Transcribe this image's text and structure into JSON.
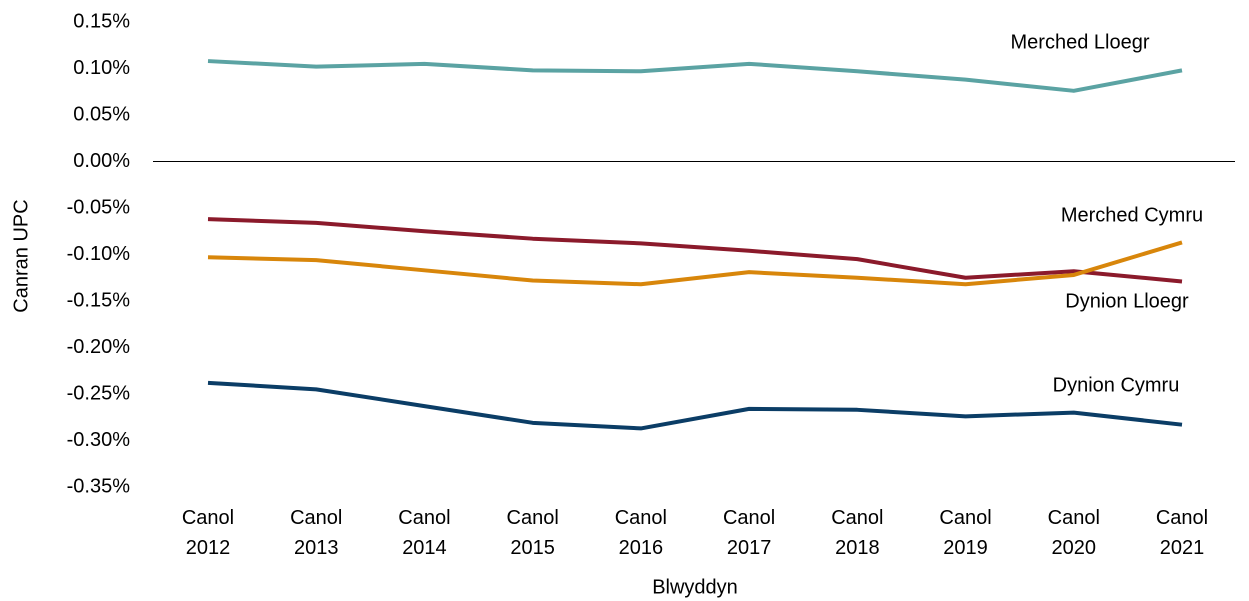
{
  "chart_data": {
    "type": "line",
    "x_label": "Blwyddyn",
    "y_label": "Canran UPC",
    "categories": [
      "Canol 2012",
      "Canol 2013",
      "Canol 2014",
      "Canol 2015",
      "Canol 2016",
      "Canol 2017",
      "Canol 2018",
      "Canol 2019",
      "Canol 2020",
      "Canol 2021"
    ],
    "series": [
      {
        "name": "Merched Lloegr",
        "color": "#5ba3a3",
        "values": [
          0.108,
          0.102,
          0.105,
          0.098,
          0.097,
          0.105,
          0.097,
          0.088,
          0.076,
          0.098
        ]
      },
      {
        "name": "Merched Cymru",
        "color": "#8b1a2b",
        "values": [
          -0.062,
          -0.066,
          -0.075,
          -0.083,
          -0.088,
          -0.096,
          -0.105,
          -0.125,
          -0.118,
          -0.129
        ]
      },
      {
        "name": "Dynion Lloegr",
        "color": "#d8860b",
        "values": [
          -0.103,
          -0.106,
          -0.117,
          -0.128,
          -0.132,
          -0.119,
          -0.125,
          -0.132,
          -0.122,
          -0.087
        ]
      },
      {
        "name": "Dynion Cymru",
        "color": "#0b3d66",
        "values": [
          -0.238,
          -0.245,
          -0.263,
          -0.281,
          -0.287,
          -0.266,
          -0.267,
          -0.274,
          -0.27,
          -0.283
        ]
      }
    ],
    "ylim": [
      -0.35,
      0.15
    ],
    "yticks": [
      {
        "value": 0.15,
        "label": "0.15%"
      },
      {
        "value": 0.1,
        "label": "0.10%"
      },
      {
        "value": 0.05,
        "label": "0.05%"
      },
      {
        "value": 0,
        "label": "0.00%"
      },
      {
        "value": -0.05,
        "label": "-0.05%"
      },
      {
        "value": -0.1,
        "label": "-0.10%"
      },
      {
        "value": -0.15,
        "label": "-0.15%"
      },
      {
        "value": -0.2,
        "label": "-0.20%"
      },
      {
        "value": -0.25,
        "label": "-0.25%"
      },
      {
        "value": -0.3,
        "label": "-0.30%"
      },
      {
        "value": -0.35,
        "label": "-0.35%"
      }
    ],
    "grid": false
  }
}
